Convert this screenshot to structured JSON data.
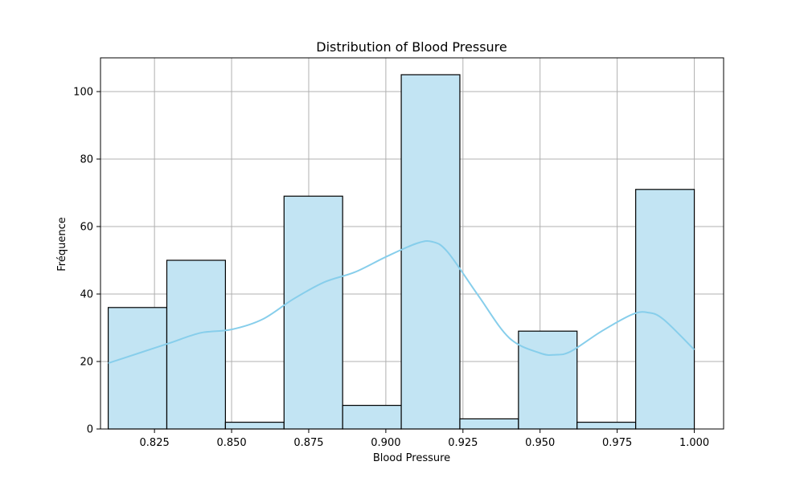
{
  "chart_data": {
    "type": "bar",
    "subtype": "histogram",
    "title": "Distribution of Blood Pressure",
    "xlabel": "Blood Pressure",
    "ylabel": "Fréquence",
    "xlim": [
      0.8075,
      1.0095
    ],
    "ylim": [
      0,
      110
    ],
    "xticks": [
      0.825,
      0.85,
      0.875,
      0.9,
      0.925,
      0.95,
      0.975,
      1.0
    ],
    "xtick_labels": [
      "0.825",
      "0.850",
      "0.875",
      "0.900",
      "0.925",
      "0.950",
      "0.975",
      "1.000"
    ],
    "yticks": [
      0,
      20,
      40,
      60,
      80,
      100
    ],
    "ytick_labels": [
      "0",
      "20",
      "40",
      "60",
      "80",
      "100"
    ],
    "grid": true,
    "bin_edges": [
      0.81,
      0.829,
      0.848,
      0.867,
      0.886,
      0.905,
      0.924,
      0.943,
      0.962,
      0.981,
      1.0
    ],
    "values": [
      36,
      50,
      2,
      69,
      7,
      105,
      3,
      29,
      2,
      71
    ],
    "kde": {
      "x": [
        0.81,
        0.82,
        0.83,
        0.84,
        0.85,
        0.86,
        0.87,
        0.88,
        0.89,
        0.9,
        0.91,
        0.915,
        0.92,
        0.93,
        0.94,
        0.95,
        0.955,
        0.96,
        0.97,
        0.98,
        0.985,
        0.99,
        1.0
      ],
      "y": [
        19.5,
        22.5,
        25.5,
        28.5,
        29.5,
        32.5,
        38.5,
        43.5,
        46.5,
        51,
        55,
        55.5,
        52.5,
        39.5,
        27,
        22.5,
        22,
        23,
        29,
        34,
        34.5,
        32.5,
        23.5
      ]
    },
    "colors": {
      "bar_fill": "#c2e4f3",
      "bar_edge": "#000000",
      "kde_line": "#87ceeb",
      "grid": "#b0b0b0",
      "axes": "#000000"
    }
  }
}
